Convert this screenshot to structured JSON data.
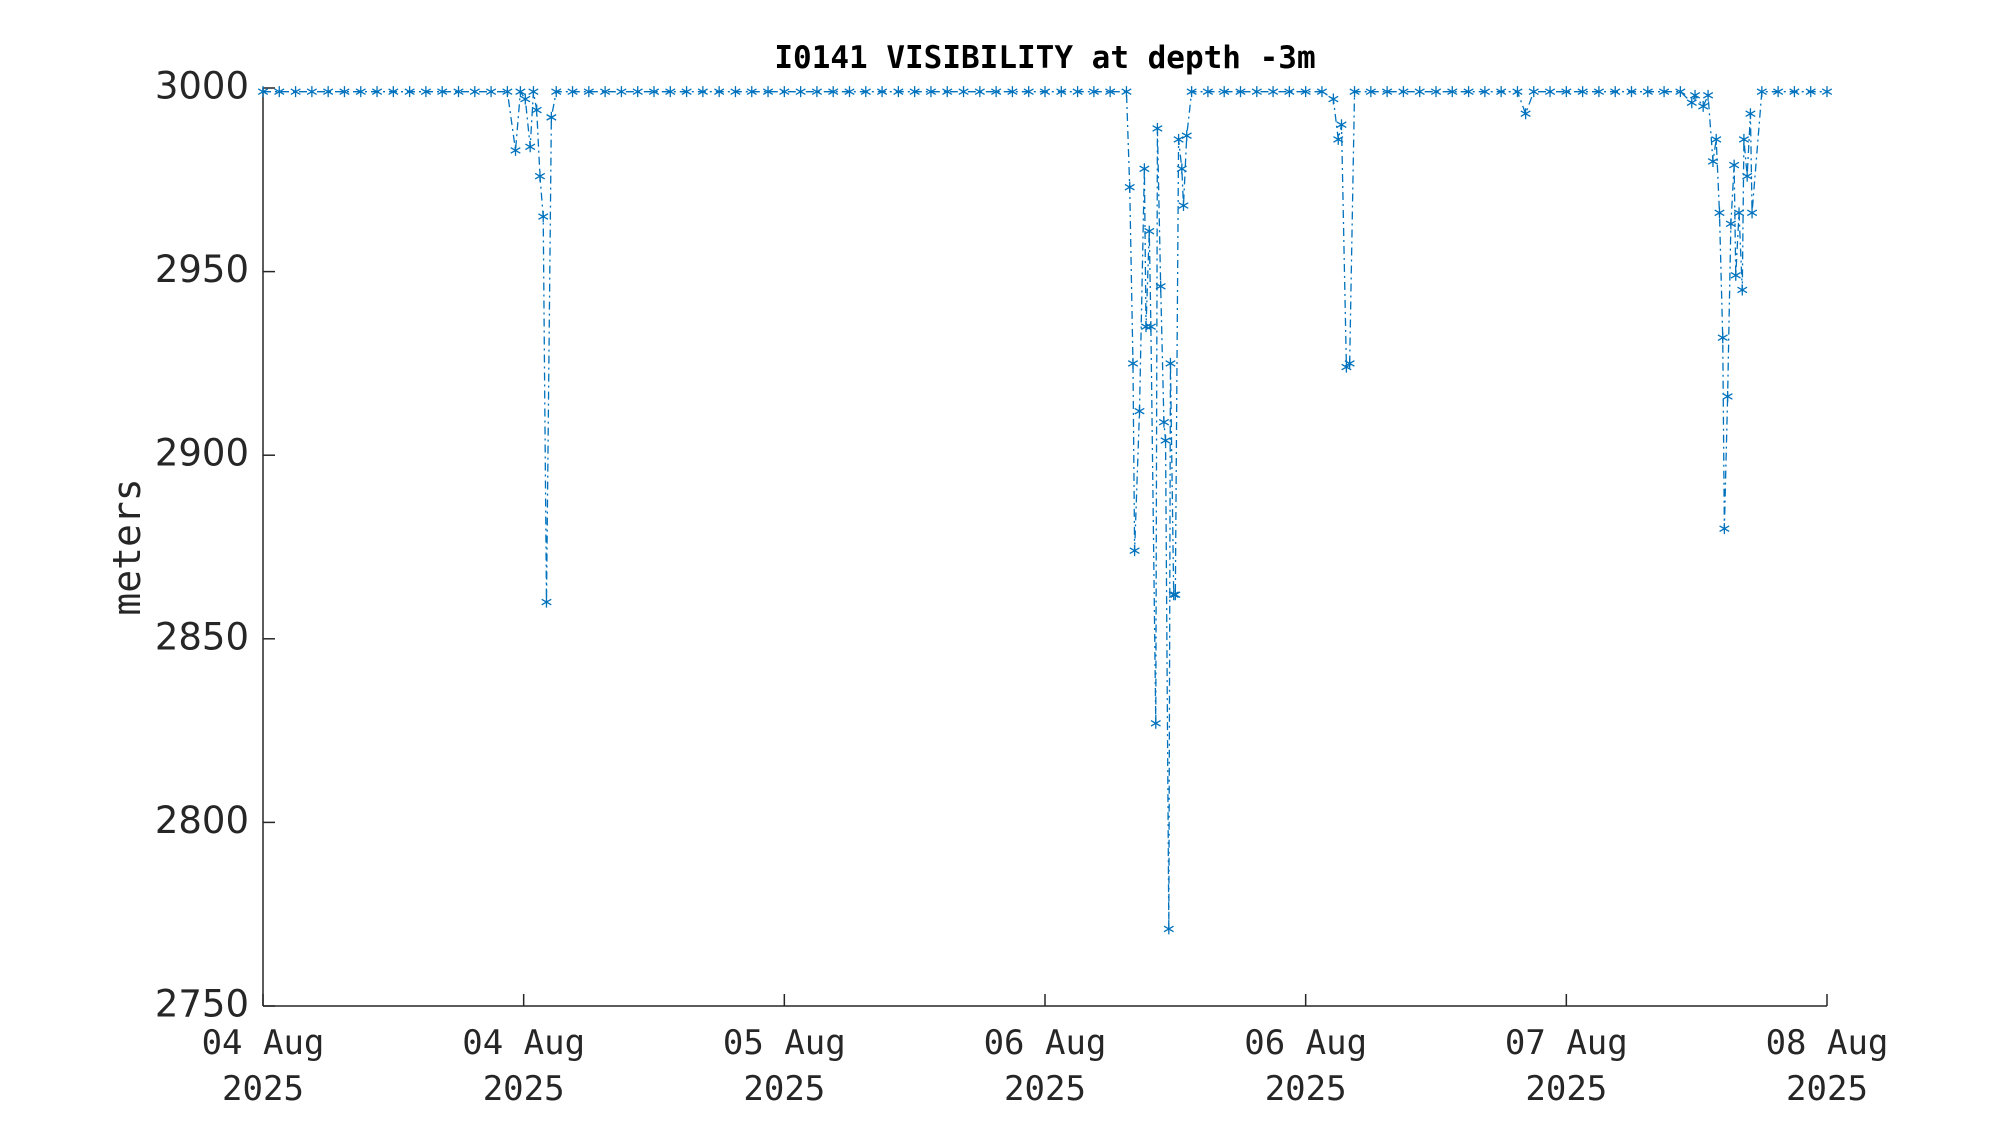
{
  "chart_data": {
    "type": "line",
    "title": "I0141 VISIBILITY at depth -3m",
    "ylabel": "meters",
    "xlim": [
      0,
      96
    ],
    "xticks": [
      {
        "value": 0,
        "label": "04 Aug\n2025"
      },
      {
        "value": 16,
        "label": "04 Aug\n2025"
      },
      {
        "value": 32,
        "label": "05 Aug\n2025"
      },
      {
        "value": 48,
        "label": "06 Aug\n2025"
      },
      {
        "value": 64,
        "label": "06 Aug\n2025"
      },
      {
        "value": 80,
        "label": "07 Aug\n2025"
      },
      {
        "value": 96,
        "label": "08 Aug\n2025"
      }
    ],
    "ylim": [
      2750,
      3000
    ],
    "yticks": [
      2750,
      2800,
      2850,
      2900,
      2950,
      3000
    ],
    "grid": false,
    "series": [
      {
        "color": "#0072bd",
        "x": [
          0,
          1,
          2,
          3,
          4,
          5,
          6,
          7,
          8,
          9,
          10,
          11,
          12,
          13,
          14,
          15,
          15.5,
          15.8,
          16.1,
          16.4,
          16.6,
          16.8,
          17,
          17.2,
          17.4,
          17.7,
          18,
          19,
          20,
          21,
          22,
          23,
          24,
          25,
          26,
          27,
          28,
          29,
          30,
          31,
          32,
          33,
          34,
          35,
          36,
          37,
          38,
          39,
          40,
          41,
          42,
          43,
          44,
          45,
          46,
          47,
          48,
          49,
          50,
          51,
          52,
          53,
          53.2,
          53.4,
          53.5,
          53.8,
          54.1,
          54.2,
          54.4,
          54.5,
          54.8,
          54.9,
          55.1,
          55.3,
          55.4,
          55.6,
          55.7,
          55.9,
          56,
          56.2,
          56.4,
          56.5,
          56.7,
          57,
          58,
          59,
          60,
          61,
          62,
          63,
          64,
          65,
          65.7,
          66,
          66.2,
          66.5,
          66.7,
          67,
          68,
          69,
          70,
          71,
          72,
          73,
          74,
          75,
          76,
          77,
          77.5,
          78,
          79,
          80,
          81,
          82,
          83,
          84,
          85,
          86,
          87,
          87.7,
          87.9,
          88.4,
          88.7,
          89,
          89.2,
          89.4,
          89.6,
          89.7,
          89.9,
          90.1,
          90.3,
          90.4,
          90.6,
          90.8,
          90.9,
          91.1,
          91.3,
          91.4,
          92,
          93,
          94,
          95,
          96
        ],
        "values": [
          2999,
          2999,
          2999,
          2999,
          2999,
          2999,
          2999,
          2999,
          2999,
          2999,
          2999,
          2999,
          2999,
          2999,
          2999,
          2999,
          2983,
          2999,
          2997,
          2984,
          2999,
          2994,
          2976,
          2965,
          2860,
          2992,
          2999,
          2999,
          2999,
          2999,
          2999,
          2999,
          2999,
          2999,
          2999,
          2999,
          2999,
          2999,
          2999,
          2999,
          2999,
          2999,
          2999,
          2999,
          2999,
          2999,
          2999,
          2999,
          2999,
          2999,
          2999,
          2999,
          2999,
          2999,
          2999,
          2999,
          2999,
          2999,
          2999,
          2999,
          2999,
          2999,
          2973,
          2925,
          2874,
          2912,
          2978,
          2935,
          2961,
          2935,
          2827,
          2989,
          2946,
          2909,
          2904,
          2771,
          2925,
          2862,
          2862,
          2986,
          2978,
          2968,
          2987,
          2999,
          2999,
          2999,
          2999,
          2999,
          2999,
          2999,
          2999,
          2999,
          2997,
          2986,
          2990,
          2924,
          2925,
          2999,
          2999,
          2999,
          2999,
          2999,
          2999,
          2999,
          2999,
          2999,
          2999,
          2999,
          2993,
          2999,
          2999,
          2999,
          2999,
          2999,
          2999,
          2999,
          2999,
          2999,
          2999,
          2996,
          2998,
          2995,
          2998,
          2980,
          2986,
          2966,
          2932,
          2880,
          2916,
          2963,
          2979,
          2949,
          2966,
          2945,
          2986,
          2976,
          2993,
          2966,
          2999,
          2999,
          2999,
          2999,
          2999
        ]
      }
    ]
  }
}
